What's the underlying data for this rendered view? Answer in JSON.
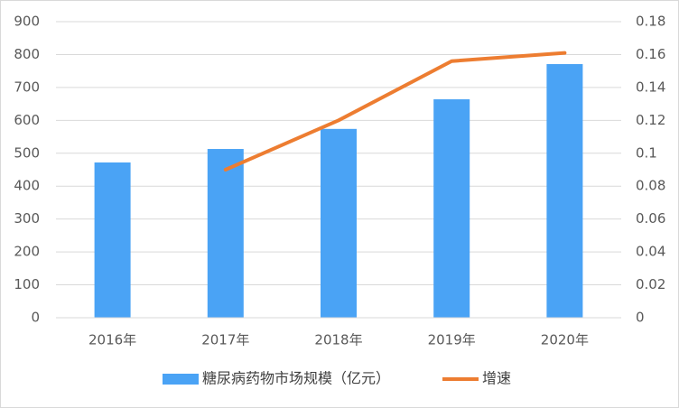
{
  "chart_data": {
    "type": "bar",
    "categories": [
      "2016年",
      "2017年",
      "2018年",
      "2019年",
      "2020年"
    ],
    "series": [
      {
        "name": "糖尿病药物市场规模（亿元）",
        "type": "bar",
        "color": "#4aa3f5",
        "values": [
          472,
          513,
          574,
          664,
          771
        ]
      },
      {
        "name": "增速",
        "type": "line",
        "axis": "y2",
        "color": "#ed7d31",
        "values": [
          null,
          0.09,
          0.12,
          0.156,
          0.161
        ]
      }
    ],
    "ylim": [
      0,
      900
    ],
    "yticks": [
      0,
      100,
      200,
      300,
      400,
      500,
      600,
      700,
      800,
      900
    ],
    "y2lim": [
      0,
      0.18
    ],
    "y2ticks": [
      0,
      0.02,
      0.04,
      0.06,
      0.08,
      0.1,
      0.12,
      0.14,
      0.16,
      0.18
    ],
    "grid": true,
    "legend": "bottom"
  }
}
